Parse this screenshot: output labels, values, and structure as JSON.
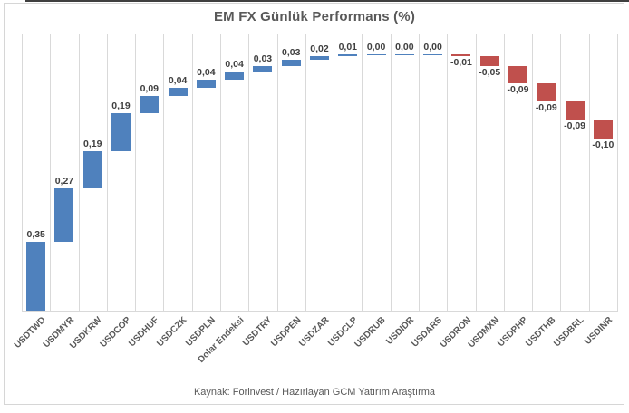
{
  "window": {
    "top_line_color": "#3f3f3f"
  },
  "chart": {
    "title": "EM FX Günlük Performans (%)",
    "source": "Kaynak: Forinvest / Hazırlayan GCM Yatırım Araştırma"
  },
  "chart_data": {
    "type": "bar",
    "subtype": "waterfall",
    "title": "EM FX Günlük Performans (%)",
    "categories": [
      "USDTWD",
      "USDMYR",
      "USDKRW",
      "USDCOP",
      "USDHUF",
      "USDCZK",
      "USDPLN",
      "Dolar Endeksi",
      "USDTRY",
      "USDPEN",
      "USDZAR",
      "USDCLP",
      "USDRUB",
      "USDIDR",
      "USDARS",
      "USDRON",
      "USDMXN",
      "USDPHP",
      "USDTHB",
      "USDBRL",
      "USDINR"
    ],
    "values": [
      0.35,
      0.27,
      0.19,
      0.19,
      0.09,
      0.04,
      0.04,
      0.04,
      0.03,
      0.03,
      0.02,
      0.01,
      0,
      0,
      0,
      -0.01,
      -0.05,
      -0.09,
      -0.09,
      -0.09,
      -0.1
    ],
    "labels": [
      "0,35",
      "0,27",
      "0,19",
      "0,19",
      "0,09",
      "0,04",
      "0,04",
      "0,04",
      "0,03",
      "0,03",
      "0,02",
      "0,01",
      "0,00",
      "0,00",
      "0,00",
      "-0,01",
      "-0,05",
      "-0,09",
      "-0,09",
      "-0,09",
      "-0,10"
    ],
    "colors": {
      "positive": "#4F81BD",
      "negative": "#C0504D",
      "gridline": "#d9d9d9",
      "label": "#3f3f3f",
      "axis_text": "#595959"
    },
    "xlabel": "",
    "ylabel": "",
    "ylim": [
      0,
      1.4
    ],
    "grid": "vertical-only",
    "legend": "none",
    "value_label_position": "outside-end",
    "annotation": "Kaynak: Forinvest / Hazırlayan GCM Yatırım Araştırma"
  }
}
